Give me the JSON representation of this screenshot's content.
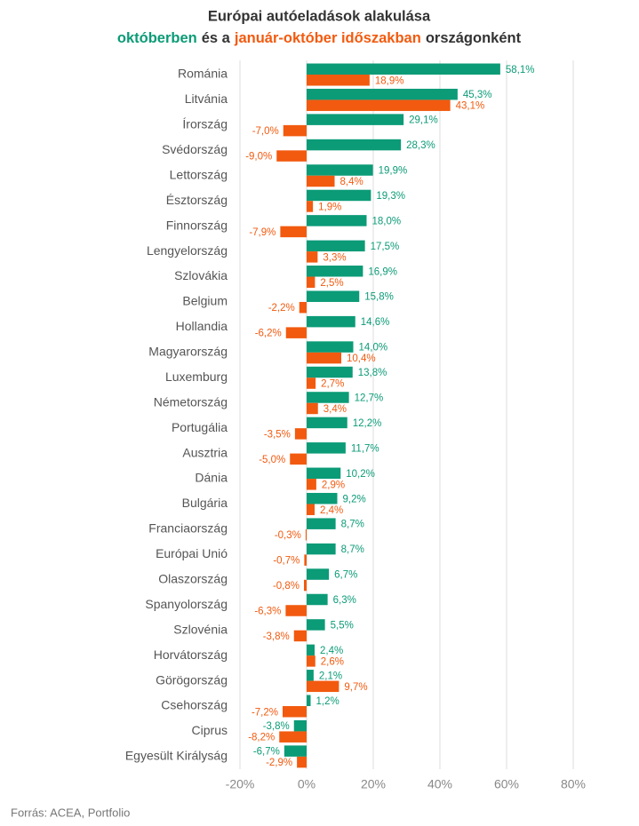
{
  "chart_data": {
    "type": "bar",
    "orientation": "horizontal",
    "title": "Európai autóeladások alakulása",
    "title_connectors": [
      "és a",
      "országonként"
    ],
    "source": "Forrás: ACEA, Portfolio",
    "categories": [
      "Románia",
      "Litvánia",
      "Írország",
      "Svédország",
      "Lettország",
      "Észtország",
      "Finnország",
      "Lengyelország",
      "Szlovákia",
      "Belgium",
      "Hollandia",
      "Magyarország",
      "Luxemburg",
      "Németország",
      "Portugália",
      "Ausztria",
      "Dánia",
      "Bulgária",
      "Franciaország",
      "Európai Unió",
      "Olaszország",
      "Spanyolország",
      "Szlovénia",
      "Horvátország",
      "Görögország",
      "Csehország",
      "Ciprus",
      "Egyesült Királyság"
    ],
    "series": [
      {
        "name": "októberben",
        "color": "#0b9b77",
        "values": [
          58.1,
          45.3,
          29.1,
          28.3,
          19.9,
          19.3,
          18.0,
          17.5,
          16.9,
          15.8,
          14.6,
          14.0,
          13.8,
          12.7,
          12.2,
          11.7,
          10.2,
          9.2,
          8.7,
          8.7,
          6.7,
          6.3,
          5.5,
          2.4,
          2.1,
          1.2,
          -3.8,
          -6.7
        ],
        "value_labels": [
          "58,1%",
          "45,3%",
          "29,1%",
          "28,3%",
          "19,9%",
          "19,3%",
          "18,0%",
          "17,5%",
          "16,9%",
          "15,8%",
          "14,6%",
          "14,0%",
          "13,8%",
          "12,7%",
          "12,2%",
          "11,7%",
          "10,2%",
          "9,2%",
          "8,7%",
          "8,7%",
          "6,7%",
          "6,3%",
          "5,5%",
          "2,4%",
          "2,1%",
          "1,2%",
          "-3,8%",
          "-6,7%"
        ]
      },
      {
        "name": "január-október időszakban",
        "color": "#f25a0f",
        "values": [
          18.9,
          43.1,
          -7.0,
          -9.0,
          8.4,
          1.9,
          -7.9,
          3.3,
          2.5,
          -2.2,
          -6.2,
          10.4,
          2.7,
          3.4,
          -3.5,
          -5.0,
          2.9,
          2.4,
          -0.3,
          -0.7,
          -0.8,
          -6.3,
          -3.8,
          2.6,
          9.7,
          -7.2,
          -8.2,
          -2.9
        ],
        "value_labels": [
          "18,9%",
          "43,1%",
          "-7,0%",
          "-9,0%",
          "8,4%",
          "1,9%",
          "-7,9%",
          "3,3%",
          "2,5%",
          "-2,2%",
          "-6,2%",
          "10,4%",
          "2,7%",
          "3,4%",
          "-3,5%",
          "-5,0%",
          "2,9%",
          "2,4%",
          "-0,3%",
          "-0,7%",
          "-0,8%",
          "-6,3%",
          "-3,8%",
          "2,6%",
          "9,7%",
          "-7,2%",
          "-8,2%",
          "-2,9%"
        ]
      }
    ],
    "xlim": [
      -20,
      80
    ],
    "xticks": [
      {
        "value": -20,
        "label": "-20%"
      },
      {
        "value": 0,
        "label": "0%"
      },
      {
        "value": 20,
        "label": "20%"
      },
      {
        "value": 40,
        "label": "40%"
      },
      {
        "value": 60,
        "label": "60%"
      },
      {
        "value": 80,
        "label": "80%"
      }
    ],
    "grid": true
  }
}
